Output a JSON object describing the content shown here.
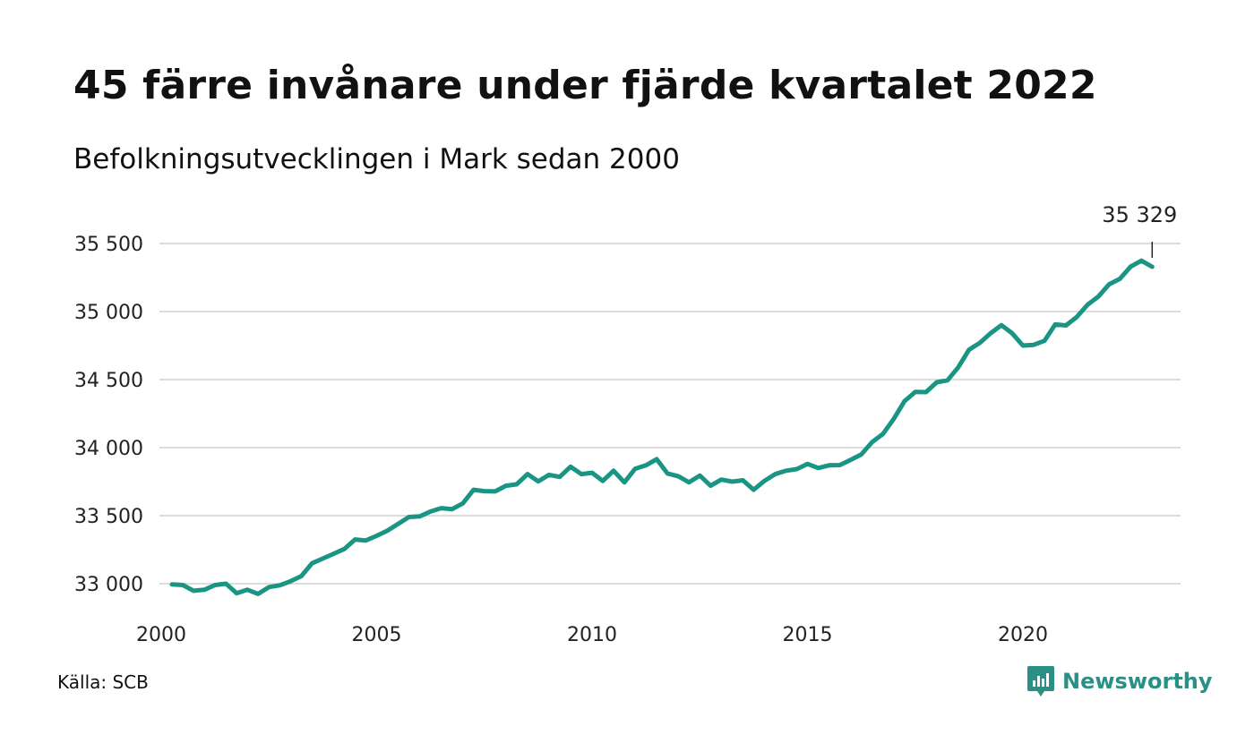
{
  "header": {
    "title": "45 färre invånare under fjärde kvartalet 2022",
    "subtitle": "Befolkningsutvecklingen i Mark sedan 2000"
  },
  "footer": {
    "source": "Källa: SCB",
    "brand": "Newsworthy"
  },
  "colors": {
    "line": "#1a9483",
    "grid": "#dddddd",
    "text": "#111111",
    "brand": "#2a8f84"
  },
  "chart_data": {
    "type": "line",
    "title": "45 färre invånare under fjärde kvartalet 2022",
    "subtitle": "Befolkningsutvecklingen i Mark sedan 2000",
    "xlim": [
      2000,
      2024
    ],
    "ylim": [
      32860,
      35580
    ],
    "grid": true,
    "x_ticks": [
      2000,
      2005,
      2010,
      2015,
      2020
    ],
    "x_tick_labels": [
      "2000",
      "2005",
      "2010",
      "2015",
      "2020"
    ],
    "y_ticks": [
      33000,
      33500,
      34000,
      34500,
      35000,
      35500
    ],
    "y_tick_labels": [
      "33 000",
      "33 500",
      "34 000",
      "34 500",
      "35 000",
      "35 500"
    ],
    "annotation": {
      "x": 2023.0,
      "y": 35329,
      "label": "35 329"
    },
    "series": [
      {
        "x": [
          2000.25,
          2000.5,
          2000.75,
          2001.0,
          2001.25,
          2001.5,
          2001.75,
          2002.0,
          2002.25,
          2002.5,
          2002.75,
          2003.0,
          2003.25,
          2003.5,
          2003.75,
          2004.0,
          2004.25,
          2004.5,
          2004.75,
          2005.0,
          2005.25,
          2005.5,
          2005.75,
          2006.0,
          2006.25,
          2006.5,
          2006.75,
          2007.0,
          2007.25,
          2007.5,
          2007.75,
          2008.0,
          2008.25,
          2008.5,
          2008.75,
          2009.0,
          2009.25,
          2009.5,
          2009.75,
          2010.0,
          2010.25,
          2010.5,
          2010.75,
          2011.0,
          2011.25,
          2011.5,
          2011.75,
          2012.0,
          2012.25,
          2012.5,
          2012.75,
          2013.0,
          2013.25,
          2013.5,
          2013.75,
          2014.0,
          2014.25,
          2014.5,
          2014.75,
          2015.0,
          2015.25,
          2015.5,
          2015.75,
          2016.0,
          2016.25,
          2016.5,
          2016.75,
          2017.0,
          2017.25,
          2017.5,
          2017.75,
          2018.0,
          2018.25,
          2018.5,
          2018.75,
          2019.0,
          2019.25,
          2019.5,
          2019.75,
          2020.0,
          2020.25,
          2020.5,
          2020.75,
          2021.0,
          2021.25,
          2021.5,
          2021.75,
          2022.0,
          2022.25,
          2022.5,
          2022.75,
          2023.0
        ],
        "values": [
          32995,
          32990,
          32948,
          32955,
          32990,
          33000,
          32930,
          32955,
          32925,
          32975,
          32988,
          33018,
          33055,
          33150,
          33185,
          33220,
          33255,
          33325,
          33318,
          33352,
          33390,
          33440,
          33490,
          33495,
          33530,
          33555,
          33548,
          33590,
          33690,
          33680,
          33678,
          33720,
          33730,
          33805,
          33752,
          33800,
          33785,
          33860,
          33805,
          33815,
          33755,
          33830,
          33745,
          33845,
          33870,
          33915,
          33810,
          33790,
          33745,
          33795,
          33720,
          33765,
          33750,
          33760,
          33690,
          33755,
          33805,
          33830,
          33842,
          33880,
          33850,
          33870,
          33872,
          33910,
          33950,
          34040,
          34100,
          34210,
          34340,
          34410,
          34408,
          34480,
          34495,
          34590,
          34720,
          34770,
          34840,
          34900,
          34840,
          34750,
          34755,
          34785,
          34905,
          34898,
          34960,
          35050,
          35110,
          35200,
          35240,
          35330,
          35374,
          35329
        ]
      }
    ]
  }
}
